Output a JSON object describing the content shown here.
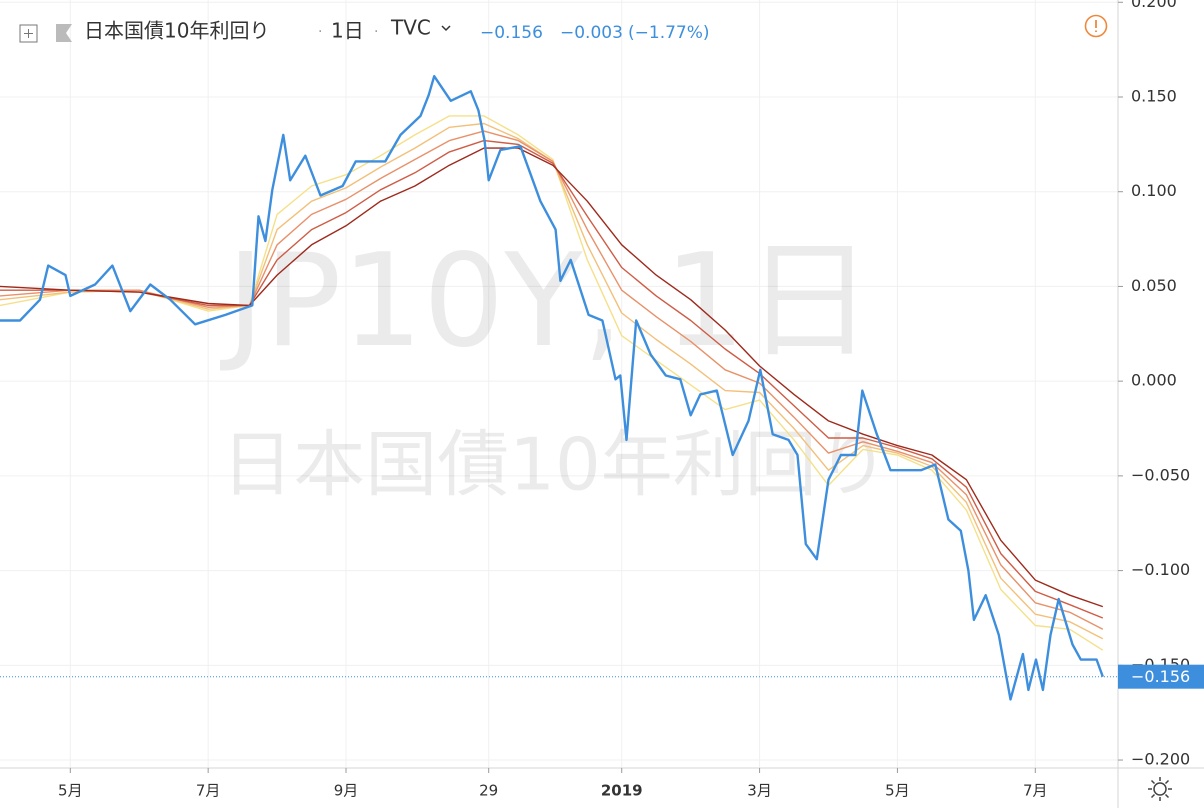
{
  "header": {
    "symbol": "日本国債10年利回り",
    "interval": "1日",
    "exchange": "TVC",
    "last": "−0.156",
    "change": "−0.003",
    "change_pct": "(−1.77%)"
  },
  "chart_data": {
    "type": "line",
    "watermark_symbol": "JP10Y, 1日",
    "watermark_name": "日本国債10年利回り",
    "xlim": [
      3.98,
      20.2
    ],
    "ylim": [
      -0.2042,
      0.2012
    ],
    "grid": true,
    "xticks": [
      {
        "value": 5,
        "label": "5月"
      },
      {
        "value": 7,
        "label": "7月"
      },
      {
        "value": 9,
        "label": "9月"
      },
      {
        "value": 11.07,
        "label": "29"
      },
      {
        "value": 13,
        "label": "2019"
      },
      {
        "value": 15,
        "label": "3月"
      },
      {
        "value": 17,
        "label": "5月"
      },
      {
        "value": 19,
        "label": "7月"
      }
    ],
    "yticks": [
      {
        "value": 0.2,
        "label": "0.200"
      },
      {
        "value": 0.15,
        "label": "0.150"
      },
      {
        "value": 0.1,
        "label": "0.100"
      },
      {
        "value": 0.05,
        "label": "0.050"
      },
      {
        "value": 0,
        "label": "0.000"
      },
      {
        "value": -0.05,
        "label": "−0.050"
      },
      {
        "value": -0.1,
        "label": "−0.100"
      },
      {
        "value": -0.15,
        "label": "−0.150"
      },
      {
        "value": -0.2,
        "label": "−0.200"
      }
    ],
    "series": [
      {
        "color": "#3d8fde",
        "x": [
          3.98,
          4.27,
          4.56,
          4.68,
          4.93,
          5.0,
          5.36,
          5.61,
          5.87,
          6.16,
          6.45,
          6.81,
          7.25,
          7.64,
          7.73,
          7.83,
          7.93,
          8.09,
          8.19,
          8.41,
          8.63,
          8.95,
          9.14,
          9.57,
          9.79,
          10.08,
          10.2,
          10.28,
          10.52,
          10.81,
          10.92,
          11.01,
          11.07,
          11.24,
          11.53,
          11.82,
          12.04,
          12.11,
          12.26,
          12.52,
          12.72,
          12.91,
          12.98,
          13.07,
          13.21,
          13.42,
          13.64,
          13.85,
          14.0,
          14.14,
          14.38,
          14.61,
          14.84,
          15.01,
          15.19,
          15.42,
          15.55,
          15.67,
          15.83,
          16.0,
          16.18,
          16.39,
          16.49,
          16.7,
          16.9,
          17.34,
          17.55,
          17.74,
          17.92,
          18.03,
          18.11,
          18.28,
          18.47,
          18.64,
          18.82,
          18.9,
          19.01,
          19.11,
          19.22,
          19.34,
          19.54,
          19.66,
          19.89,
          19.98
        ],
        "values": [
          0.032,
          0.032,
          0.043,
          0.061,
          0.056,
          0.045,
          0.051,
          0.061,
          0.037,
          0.051,
          0.043,
          0.03,
          0.035,
          0.04,
          0.087,
          0.074,
          0.101,
          0.13,
          0.106,
          0.119,
          0.098,
          0.103,
          0.116,
          0.116,
          0.13,
          0.14,
          0.151,
          0.161,
          0.148,
          0.153,
          0.143,
          0.127,
          0.106,
          0.122,
          0.124,
          0.095,
          0.08,
          0.053,
          0.064,
          0.035,
          0.032,
          0.001,
          0.003,
          -0.031,
          0.032,
          0.014,
          0.003,
          0.001,
          -0.018,
          -0.007,
          -0.005,
          -0.039,
          -0.021,
          0.006,
          -0.028,
          -0.031,
          -0.039,
          -0.086,
          -0.094,
          -0.052,
          -0.039,
          -0.039,
          -0.005,
          -0.028,
          -0.047,
          -0.047,
          -0.044,
          -0.073,
          -0.079,
          -0.1,
          -0.126,
          -0.113,
          -0.134,
          -0.168,
          -0.144,
          -0.163,
          -0.147,
          -0.163,
          -0.134,
          -0.115,
          -0.139,
          -0.147,
          -0.147,
          -0.156
        ]
      },
      {
        "color": "#9e2a1c",
        "x": [
          3.98,
          5,
          6,
          7,
          7.6,
          8,
          8.5,
          9,
          9.5,
          10,
          10.5,
          11,
          11.5,
          12,
          12.5,
          13,
          13.5,
          14,
          14.5,
          15,
          15.5,
          16,
          16.5,
          17,
          17.5,
          18,
          18.5,
          19,
          19.5,
          19.98
        ],
        "values": [
          0.05,
          0.048,
          0.047,
          0.041,
          0.04,
          0.056,
          0.072,
          0.082,
          0.095,
          0.103,
          0.114,
          0.123,
          0.123,
          0.114,
          0.095,
          0.072,
          0.056,
          0.043,
          0.027,
          0.008,
          -0.007,
          -0.021,
          -0.028,
          -0.034,
          -0.039,
          -0.052,
          -0.084,
          -0.105,
          -0.113,
          -0.119
        ]
      },
      {
        "color": "#cf5c45",
        "x": [
          3.98,
          5,
          6,
          7,
          7.6,
          8,
          8.5,
          9,
          9.5,
          10,
          10.5,
          11,
          11.5,
          12,
          12.5,
          13,
          13.5,
          14,
          14.5,
          15,
          15.5,
          16,
          16.5,
          17,
          17.5,
          18,
          18.5,
          19,
          19.5,
          19.98
        ],
        "values": [
          0.048,
          0.048,
          0.047,
          0.04,
          0.04,
          0.064,
          0.08,
          0.089,
          0.101,
          0.11,
          0.121,
          0.127,
          0.125,
          0.115,
          0.087,
          0.06,
          0.045,
          0.032,
          0.017,
          0.004,
          -0.013,
          -0.03,
          -0.03,
          -0.035,
          -0.041,
          -0.056,
          -0.091,
          -0.111,
          -0.118,
          -0.125
        ]
      },
      {
        "color": "#e8916a",
        "x": [
          3.98,
          5,
          6,
          7,
          7.6,
          8,
          8.5,
          9,
          9.5,
          10,
          10.5,
          11,
          11.5,
          12,
          12.5,
          13,
          13.5,
          14,
          14.5,
          15,
          15.5,
          16,
          16.5,
          17,
          17.5,
          18,
          18.5,
          19,
          19.5,
          19.98
        ],
        "values": [
          0.045,
          0.048,
          0.048,
          0.039,
          0.04,
          0.072,
          0.088,
          0.096,
          0.107,
          0.117,
          0.127,
          0.132,
          0.127,
          0.116,
          0.08,
          0.048,
          0.034,
          0.021,
          0.006,
          -0.001,
          -0.019,
          -0.038,
          -0.032,
          -0.037,
          -0.043,
          -0.06,
          -0.097,
          -0.117,
          -0.122,
          -0.131
        ]
      },
      {
        "color": "#f3c07a",
        "x": [
          3.98,
          5,
          6,
          7,
          7.6,
          8,
          8.5,
          9,
          9.5,
          10,
          10.5,
          11,
          11.5,
          12,
          12.5,
          13,
          13.5,
          14,
          14.5,
          15,
          15.5,
          16,
          16.5,
          17,
          17.5,
          18,
          18.5,
          19,
          19.5,
          19.98
        ],
        "values": [
          0.043,
          0.047,
          0.048,
          0.038,
          0.04,
          0.08,
          0.095,
          0.102,
          0.113,
          0.123,
          0.134,
          0.136,
          0.128,
          0.116,
          0.072,
          0.036,
          0.022,
          0.009,
          -0.005,
          -0.006,
          -0.025,
          -0.047,
          -0.034,
          -0.038,
          -0.045,
          -0.064,
          -0.104,
          -0.123,
          -0.127,
          -0.136
        ]
      },
      {
        "color": "#f5e08a",
        "x": [
          3.98,
          5,
          6,
          7,
          7.6,
          8,
          8.5,
          9,
          9.5,
          10,
          10.5,
          11,
          11.5,
          12,
          12.5,
          13,
          13.5,
          14,
          14.5,
          15,
          15.5,
          16,
          16.5,
          17,
          17.5,
          18,
          18.5,
          19,
          19.5,
          19.98
        ],
        "values": [
          0.04,
          0.047,
          0.048,
          0.037,
          0.04,
          0.088,
          0.103,
          0.109,
          0.119,
          0.13,
          0.14,
          0.14,
          0.13,
          0.117,
          0.064,
          0.024,
          0.011,
          -0.002,
          -0.015,
          -0.01,
          -0.031,
          -0.055,
          -0.036,
          -0.039,
          -0.047,
          -0.068,
          -0.11,
          -0.129,
          -0.131,
          -0.142
        ]
      }
    ]
  }
}
